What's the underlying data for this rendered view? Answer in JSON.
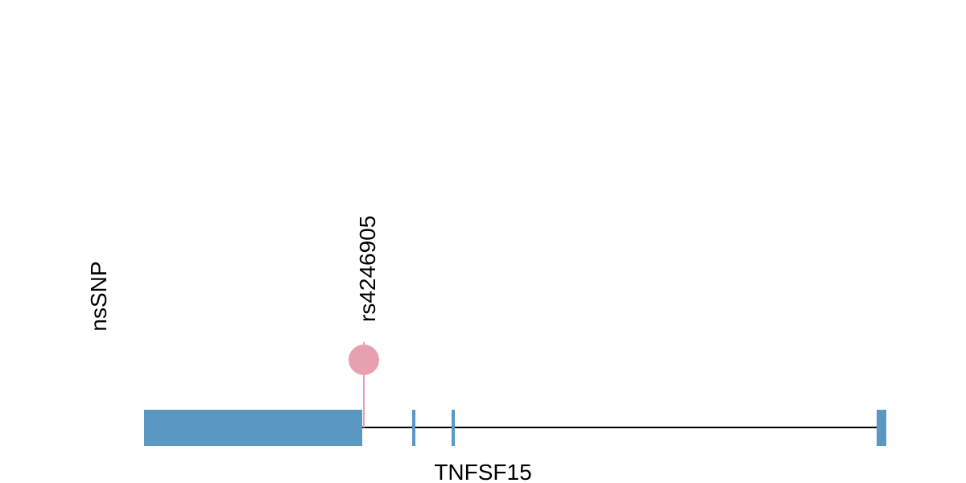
{
  "track": {
    "label": "nsSNP"
  },
  "snp": {
    "label": "rs4246905"
  },
  "gene": {
    "label": "TNFSF15"
  }
}
